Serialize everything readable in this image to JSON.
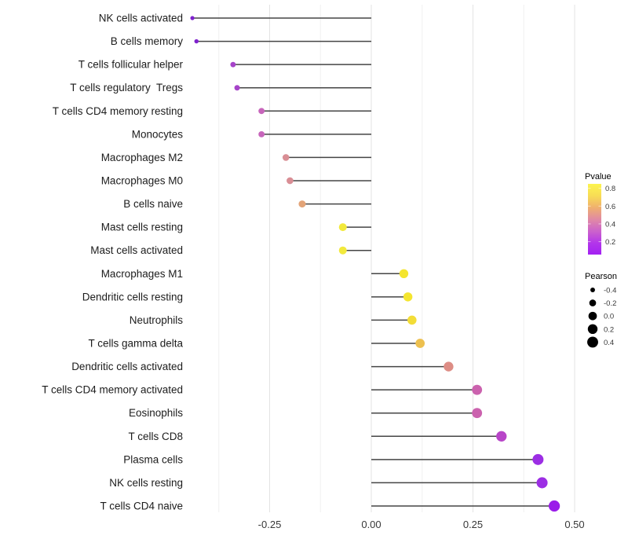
{
  "chart_data": {
    "type": "scatter",
    "subtype": "lollipop",
    "title": "",
    "xlabel": "",
    "ylabel": "",
    "encoding": {
      "x": "Pearson correlation",
      "dot_color": "Pvalue",
      "dot_size": "Pearson"
    },
    "xlim": [
      -0.45,
      0.52
    ],
    "x_ticks": [
      {
        "value": -0.25,
        "label": "-0.25"
      },
      {
        "value": 0.0,
        "label": "0.00"
      },
      {
        "value": 0.25,
        "label": "0.25"
      },
      {
        "value": 0.5,
        "label": "0.50"
      }
    ],
    "x_minor_ticks": [
      -0.375,
      -0.125,
      0.125,
      0.375
    ],
    "grid": "vertical-only",
    "points": [
      {
        "category": "NK cells activated",
        "pearson": -0.44,
        "pvalue_est": 0.05,
        "color": "#7f22cd"
      },
      {
        "category": "B cells memory",
        "pearson": -0.43,
        "pvalue_est": 0.05,
        "color": "#7f22cd"
      },
      {
        "category": "T cells follicular helper",
        "pearson": -0.34,
        "pvalue_est": 0.15,
        "color": "#a644c9"
      },
      {
        "category": "T cells regulatory  Tregs",
        "pearson": -0.33,
        "pvalue_est": 0.15,
        "color": "#a644c9"
      },
      {
        "category": "T cells CD4 memory resting",
        "pearson": -0.27,
        "pvalue_est": 0.3,
        "color": "#c765bb"
      },
      {
        "category": "Monocytes",
        "pearson": -0.27,
        "pvalue_est": 0.3,
        "color": "#c765bb"
      },
      {
        "category": "Macrophages M2",
        "pearson": -0.21,
        "pvalue_est": 0.45,
        "color": "#d98e95"
      },
      {
        "category": "Macrophages M0",
        "pearson": -0.2,
        "pvalue_est": 0.45,
        "color": "#d98e95"
      },
      {
        "category": "B cells naive",
        "pearson": -0.17,
        "pvalue_est": 0.5,
        "color": "#e3a478"
      },
      {
        "category": "Mast cells resting",
        "pearson": -0.07,
        "pvalue_est": 0.75,
        "color": "#f2e93c"
      },
      {
        "category": "Mast cells activated",
        "pearson": -0.07,
        "pvalue_est": 0.75,
        "color": "#f2e93c"
      },
      {
        "category": "Macrophages M1",
        "pearson": 0.08,
        "pvalue_est": 0.75,
        "color": "#f4e52f"
      },
      {
        "category": "Dendritic cells resting",
        "pearson": 0.09,
        "pvalue_est": 0.75,
        "color": "#f4e52f"
      },
      {
        "category": "Neutrophils",
        "pearson": 0.1,
        "pvalue_est": 0.7,
        "color": "#f3dd37"
      },
      {
        "category": "T cells gamma delta",
        "pearson": 0.12,
        "pvalue_est": 0.6,
        "color": "#edc04f"
      },
      {
        "category": "Dendritic cells activated",
        "pearson": 0.19,
        "pvalue_est": 0.45,
        "color": "#dd8d85"
      },
      {
        "category": "T cells CD4 memory activated",
        "pearson": 0.26,
        "pvalue_est": 0.3,
        "color": "#cb62ae"
      },
      {
        "category": "Eosinophils",
        "pearson": 0.26,
        "pvalue_est": 0.3,
        "color": "#cb62ae"
      },
      {
        "category": "T cells CD8",
        "pearson": 0.32,
        "pvalue_est": 0.2,
        "color": "#b845c8"
      },
      {
        "category": "Plasma cells",
        "pearson": 0.41,
        "pvalue_est": 0.1,
        "color": "#9c2ee4"
      },
      {
        "category": "NK cells resting",
        "pearson": 0.42,
        "pvalue_est": 0.1,
        "color": "#9c2ee4"
      },
      {
        "category": "T cells CD4 naive",
        "pearson": 0.45,
        "pvalue_est": 0.05,
        "color": "#9a1de9"
      }
    ],
    "legend": {
      "pvalue": {
        "title": "Pvalue",
        "tick_labels": [
          "0.8",
          "0.6",
          "0.4",
          "0.2"
        ],
        "tick_values": [
          0.8,
          0.6,
          0.4,
          0.2
        ],
        "bar_range": [
          0.055,
          0.85
        ],
        "gradient_top_to_bottom": [
          "#fcf44f",
          "#f8dd55",
          "#f0b06e",
          "#e18aa4",
          "#cc63cb",
          "#b336ea",
          "#a421f2"
        ],
        "position": "right"
      },
      "pearson": {
        "title": "Pearson",
        "entry_labels": [
          "-0.4",
          "-0.2",
          "0.0",
          "0.2",
          "0.4"
        ],
        "entry_values": [
          -0.4,
          -0.2,
          0.0,
          0.2,
          0.4
        ],
        "dot_color": "#000000",
        "position": "right"
      }
    },
    "colors": {
      "segment": "#454545",
      "grid_major": "#e3e3e3",
      "grid_minor": "#f0f0f0",
      "axis_text": "#383838",
      "category_text": "#1c1c1c",
      "legend_title_text": "#000000",
      "background": "#ffffff"
    }
  }
}
